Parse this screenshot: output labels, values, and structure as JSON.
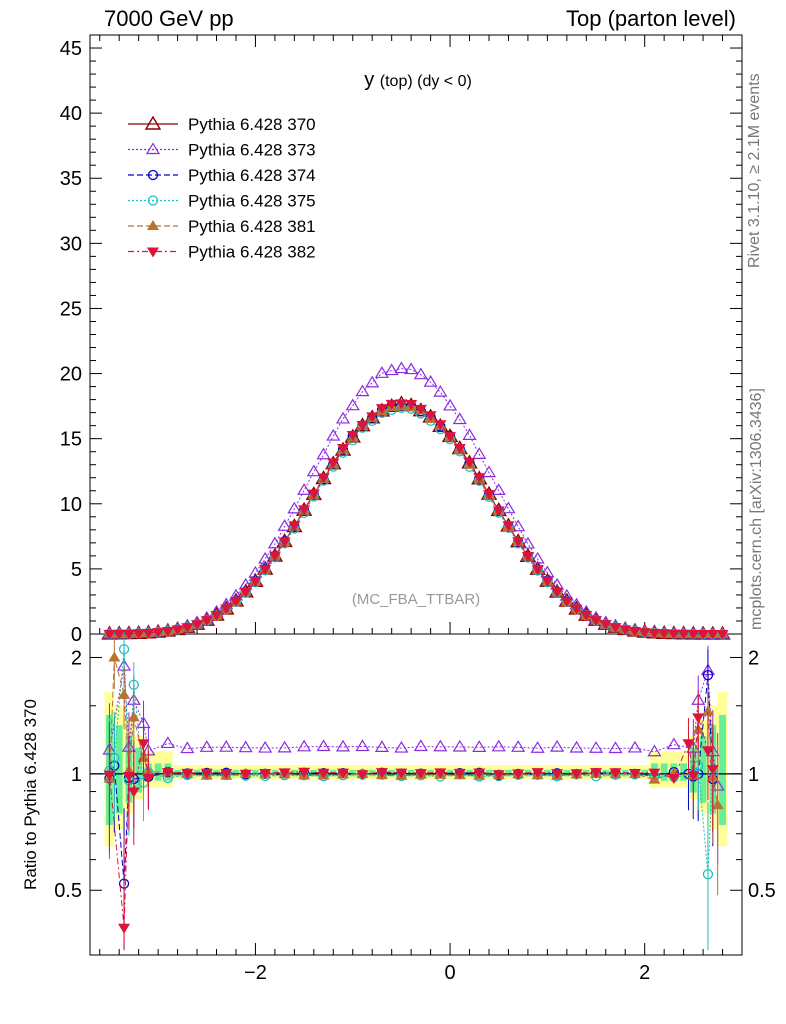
{
  "header": {
    "left": "7000 GeV pp",
    "right": "Top (parton level)"
  },
  "side_labels": {
    "rivet": "Rivet 3.1.10, ≥ 2.1M events",
    "mcplots": "mcplots.cern.ch [arXiv:1306.3436]"
  },
  "watermark": "(MC_FBA_TTBAR)",
  "chart_data": [
    {
      "type": "scatter",
      "title": "y (top) (dy < 0)",
      "title_parts": {
        "main": "y",
        "sub": "(top) (dy < 0)"
      },
      "xlim": [
        -3.7,
        3.0
      ],
      "ylim": [
        0,
        46
      ],
      "xticks": [
        -2,
        0,
        2
      ],
      "yticks": [
        0,
        5,
        10,
        15,
        20,
        25,
        30,
        35,
        40,
        45
      ],
      "legend_position": "top-left",
      "series": [
        {
          "name": "Pythia 6.428 370",
          "color": "#8b0000",
          "marker": "triangle-open-large",
          "dash": "solid",
          "scale": 1.0
        },
        {
          "name": "Pythia 6.428 373",
          "color": "#8a2be2",
          "marker": "triangle-open",
          "dash": "dotted",
          "scale": 1.16
        },
        {
          "name": "Pythia 6.428 374",
          "color": "#0000cd",
          "marker": "circle-open",
          "dash": "dashed",
          "scale": 1.0
        },
        {
          "name": "Pythia 6.428 375",
          "color": "#20c0c0",
          "marker": "circle-open",
          "dash": "dotted",
          "scale": 0.985
        },
        {
          "name": "Pythia 6.428 381",
          "color": "#b87333",
          "marker": "triangle-filled",
          "dash": "dashed",
          "scale": 0.995
        },
        {
          "name": "Pythia 6.428 382",
          "color": "#dc143c",
          "marker": "triangle-down-filled",
          "dash": "dashdot",
          "scale": 1.005
        }
      ],
      "curve": {
        "peak_x": -0.5,
        "peak_y": 17.6,
        "width": 0.92,
        "x_start": -3.5,
        "x_end": 2.8,
        "bin_width": 0.1
      }
    },
    {
      "type": "scatter",
      "ylabel": "Ratio to Pythia 6.428 370",
      "xlim": [
        -3.7,
        3.0
      ],
      "ylim": [
        0.34,
        2.3
      ],
      "xticks": [
        -2,
        0,
        2
      ],
      "xtick_labels": [
        "−2",
        "0",
        "2"
      ],
      "yticks_labeled": [
        0.5,
        1,
        2
      ],
      "ytick_labels": [
        "0.5",
        "1",
        "2"
      ],
      "yticks_minor": [
        0.6,
        0.7,
        0.8,
        0.9,
        1.5
      ],
      "series_levels": [
        {
          "name": "Pythia 6.428 370",
          "level": 1.0
        },
        {
          "name": "Pythia 6.428 373",
          "level": 1.17
        },
        {
          "name": "Pythia 6.428 374",
          "level": 1.0
        },
        {
          "name": "Pythia 6.428 375",
          "level": 0.99
        },
        {
          "name": "Pythia 6.428 381",
          "level": 0.995
        },
        {
          "name": "Pythia 6.428 382",
          "level": 1.005
        }
      ],
      "edge_points": {
        "Pythia 6.428 373": [
          [
            -3.35,
            1.9
          ],
          [
            -3.25,
            1.55
          ],
          [
            -3.15,
            1.35
          ],
          [
            2.55,
            1.55
          ],
          [
            2.65,
            1.85
          ],
          [
            2.75,
            0.93
          ]
        ],
        "Pythia 6.428 374": [
          [
            -3.45,
            1.05
          ],
          [
            -3.35,
            0.52
          ],
          [
            -3.25,
            0.97
          ],
          [
            2.45,
            1.0
          ],
          [
            2.55,
            1.0
          ],
          [
            2.65,
            1.8
          ]
        ],
        "Pythia 6.428 375": [
          [
            -3.45,
            1.1
          ],
          [
            -3.35,
            2.1
          ],
          [
            -3.25,
            1.7
          ],
          [
            -3.15,
            0.95
          ],
          [
            2.55,
            1.05
          ],
          [
            2.65,
            0.55
          ]
        ],
        "Pythia 6.428 381": [
          [
            -3.45,
            2.0
          ],
          [
            -3.35,
            1.6
          ],
          [
            -3.25,
            1.4
          ],
          [
            -3.15,
            1.1
          ],
          [
            2.55,
            1.3
          ],
          [
            2.65,
            1.45
          ],
          [
            2.75,
            0.83
          ]
        ],
        "Pythia 6.428 382": [
          [
            -3.35,
            0.4
          ],
          [
            -3.25,
            0.9
          ],
          [
            -3.15,
            1.2
          ],
          [
            2.45,
            1.2
          ],
          [
            2.55,
            1.4
          ],
          [
            2.65,
            1.15
          ]
        ]
      },
      "bands": {
        "yellow": "#ffff99",
        "green": "#66ee99"
      }
    }
  ]
}
